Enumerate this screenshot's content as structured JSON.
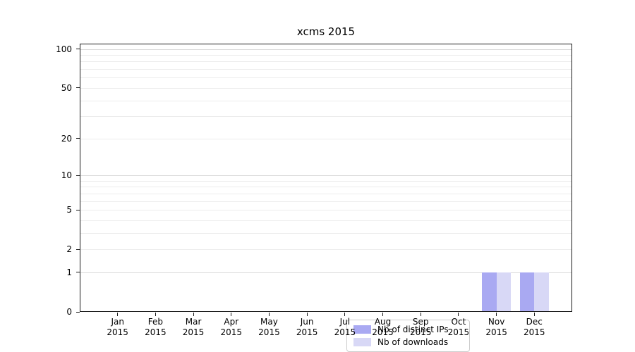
{
  "chart_data": {
    "type": "bar",
    "title": "xcms 2015",
    "categories": [
      "Jan 2015",
      "Feb 2015",
      "Mar 2015",
      "Apr 2015",
      "May 2015",
      "Jun 2015",
      "Jul 2015",
      "Aug 2015",
      "Sep 2015",
      "Oct 2015",
      "Nov 2015",
      "Dec 2015"
    ],
    "series": [
      {
        "name": "Nb of distinct IPs",
        "color": "#a9a9f2",
        "values": [
          0,
          0,
          0,
          0,
          0,
          0,
          0,
          0,
          0,
          0,
          1,
          1
        ]
      },
      {
        "name": "Nb of downloads",
        "color": "#d8d8f6",
        "values": [
          0,
          0,
          0,
          0,
          0,
          0,
          0,
          0,
          0,
          0,
          1,
          1
        ]
      }
    ],
    "xlabel": "",
    "ylabel": "",
    "y_ticks": [
      0,
      1,
      2,
      5,
      10,
      20,
      50,
      100
    ],
    "y_minor_gridlines": [
      2,
      3,
      4,
      5,
      6,
      7,
      8,
      9,
      20,
      30,
      40,
      50,
      60,
      70,
      80,
      90
    ],
    "y_major_gridlines": [
      1,
      10,
      100
    ],
    "y_scale": "log10(1+y)",
    "ylim": [
      0,
      110
    ],
    "grid": true,
    "legend_position": "inside bottom-center",
    "colors": {
      "major_grid": "#d8d8d8",
      "minor_grid": "#ececec",
      "spine": "#1a1a1a"
    }
  }
}
